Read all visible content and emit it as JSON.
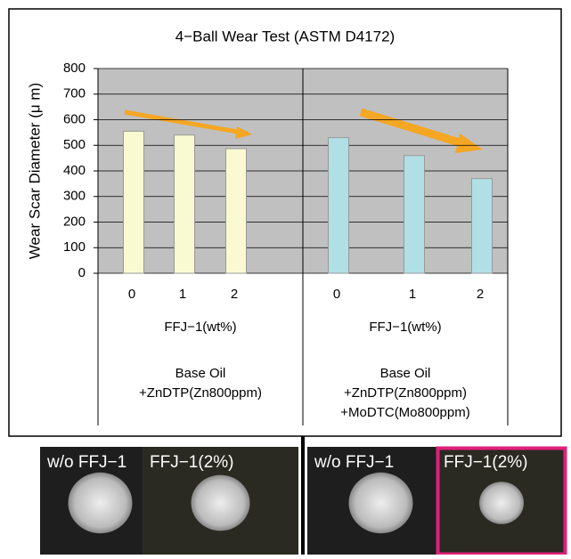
{
  "chart_data": {
    "type": "bar",
    "title": "4−Ball  Wear  Test (ASTM D4172)",
    "y_label": "Wear Scar Diameter (μ m)",
    "ylim": [
      0,
      800
    ],
    "yticks": [
      0,
      100,
      200,
      300,
      400,
      500,
      600,
      700,
      800
    ],
    "grid": true,
    "groups": [
      {
        "categories": [
          "0",
          "1",
          "2"
        ],
        "values": [
          555,
          540,
          487
        ],
        "color": "#fafad2",
        "x_label": "FFJ−1(wt%)",
        "description": [
          "Base Oil",
          "+ZnDTP(Zn800ppm)"
        ]
      },
      {
        "categories": [
          "0",
          "1",
          "2"
        ],
        "values": [
          530,
          460,
          370
        ],
        "color": "#b0e0e6",
        "x_label": "FFJ−1(wt%)",
        "description": [
          "Base Oil",
          "+ZnDTP(Zn800ppm)",
          "+MoDTC(Mo800ppm)"
        ]
      }
    ]
  },
  "photos": [
    {
      "labels": [
        "w/o  FFJ−1",
        "FFJ−1(2%)"
      ]
    },
    {
      "labels": [
        "w/o  FFJ−1",
        "FFJ−1(2%)"
      ]
    }
  ]
}
